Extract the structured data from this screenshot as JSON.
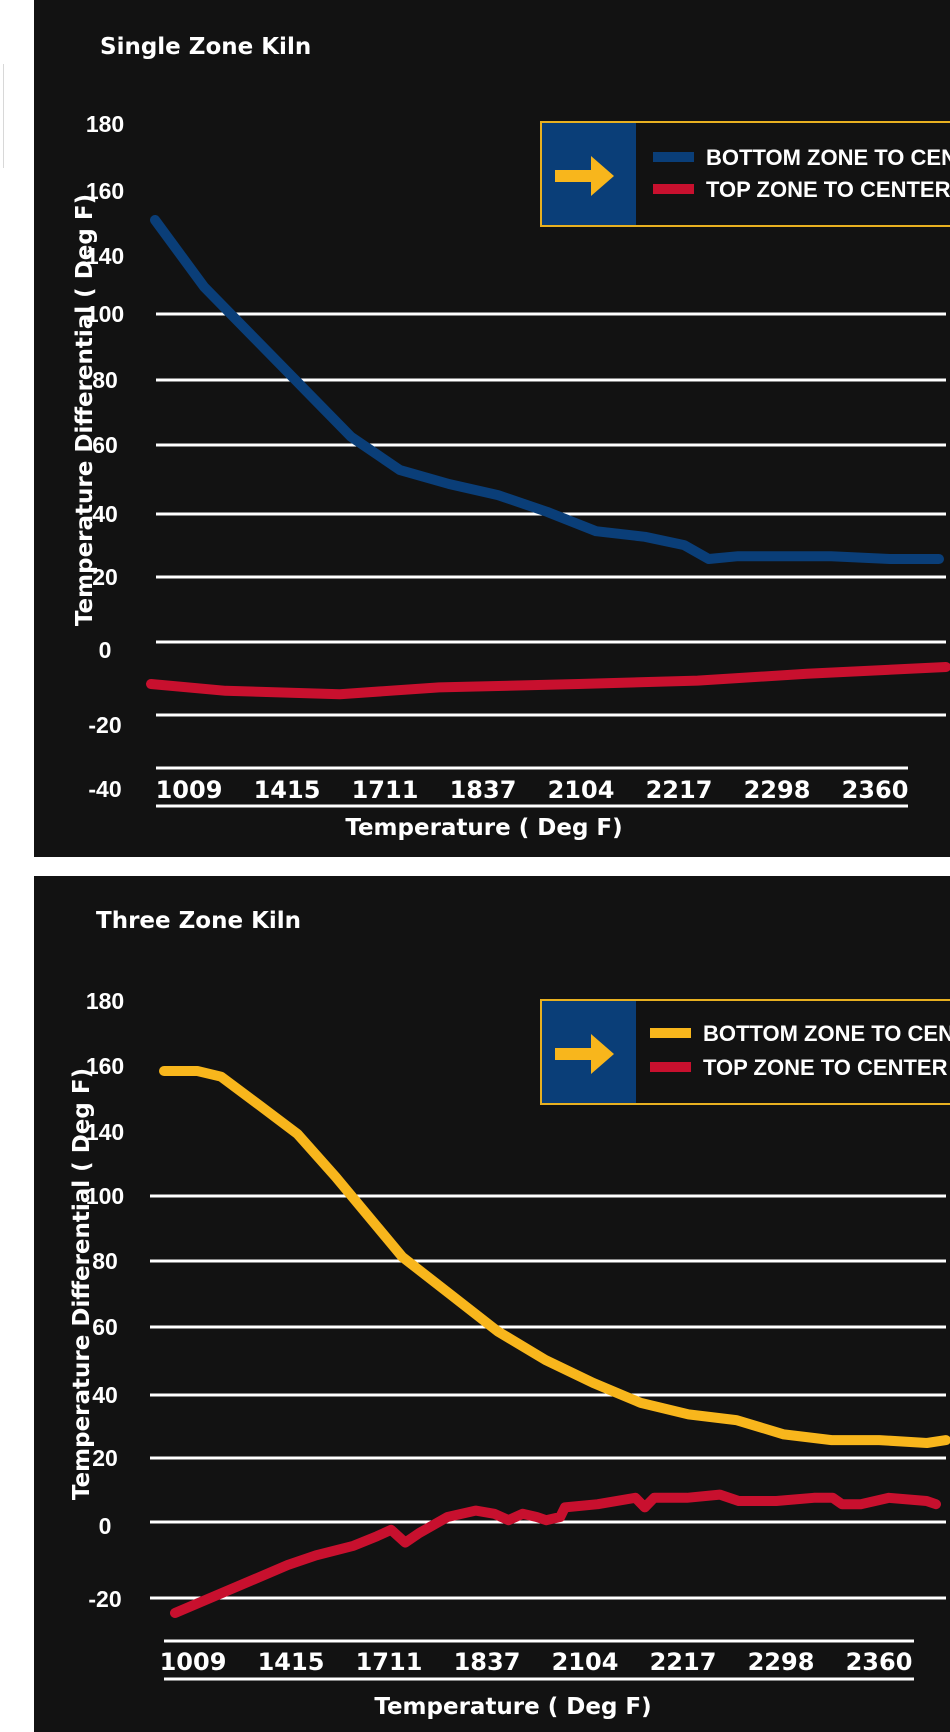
{
  "colors": {
    "background": "#121212",
    "grid": "#ffffff",
    "legend_border": "#e8b020",
    "legend_box": "#0a3e78",
    "arrow": "#f8b61c"
  },
  "legend_icon": "arrow-right-icon",
  "chart_data": [
    {
      "type": "line",
      "title": "Single Zone Kiln",
      "xlabel": "Temperature  ( Deg F)",
      "ylabel": "Temperature Differential ( Deg F)",
      "categories": [
        "1009",
        "1415",
        "1711",
        "1837",
        "2104",
        "2217",
        "2298",
        "2360"
      ],
      "y_ticks": [
        "180",
        "160",
        "140",
        "100",
        "80",
        "60",
        "40",
        "20",
        "0",
        "-20",
        "-40"
      ],
      "grid": true,
      "legend_position": "top-right",
      "series": [
        {
          "name": "BOTTOM ZONE TO CENTER",
          "color": "#0a3e78",
          "points": [
            [
              0.0,
              150
            ],
            [
              0.5,
              126
            ],
            [
              1.0,
              108
            ],
            [
              1.5,
              90
            ],
            [
              2.0,
              72
            ],
            [
              2.5,
              60
            ],
            [
              3.0,
              55
            ],
            [
              3.5,
              51
            ],
            [
              4.0,
              45
            ],
            [
              4.5,
              38
            ],
            [
              5.0,
              36
            ],
            [
              5.4,
              33
            ],
            [
              5.65,
              28
            ],
            [
              5.95,
              29
            ],
            [
              6.4,
              29
            ],
            [
              6.9,
              29
            ],
            [
              7.5,
              28
            ],
            [
              8.0,
              28
            ]
          ]
        },
        {
          "name": "TOP ZONE TO CENTER",
          "color": "#c8102e",
          "points": [
            [
              0.0,
              -8
            ],
            [
              0.75,
              -10
            ],
            [
              1.9,
              -11
            ],
            [
              2.9,
              -9
            ],
            [
              4.3,
              -8
            ],
            [
              5.5,
              -7
            ],
            [
              6.6,
              -5
            ],
            [
              8.0,
              -3
            ]
          ]
        }
      ]
    },
    {
      "type": "line",
      "title": "Three Zone Kiln",
      "xlabel": "Temperature  ( Deg F)",
      "ylabel": "Temperature Differential ( Deg F)",
      "categories": [
        "1009",
        "1415",
        "1711",
        "1837",
        "2104",
        "2217",
        "2298",
        "2360"
      ],
      "y_ticks": [
        "180",
        "160",
        "140",
        "100",
        "80",
        "60",
        "40",
        "20",
        "0",
        "-20"
      ],
      "grid": true,
      "legend_position": "top-right",
      "series": [
        {
          "name": "BOTTOM ZONE TO CENTER",
          "color": "#f8b61c",
          "points": [
            [
              0.0,
              157
            ],
            [
              0.35,
              157
            ],
            [
              0.6,
              155
            ],
            [
              1.0,
              145
            ],
            [
              1.4,
              135
            ],
            [
              1.8,
              120
            ],
            [
              2.2,
              104
            ],
            [
              2.5,
              92
            ],
            [
              3.0,
              79
            ],
            [
              3.5,
              66
            ],
            [
              4.0,
              56
            ],
            [
              4.5,
              48
            ],
            [
              5.0,
              41
            ],
            [
              5.5,
              37
            ],
            [
              6.0,
              35
            ],
            [
              6.5,
              30
            ],
            [
              7.0,
              28
            ],
            [
              7.5,
              28
            ],
            [
              8.0,
              27
            ],
            [
              8.2,
              28
            ]
          ]
        },
        {
          "name": "TOP ZONE TO CENTER",
          "color": "#c8102e",
          "points": [
            [
              0.0,
              -24
            ],
            [
              0.4,
              -19
            ],
            [
              0.8,
              -14
            ],
            [
              1.2,
              -9
            ],
            [
              1.5,
              -6
            ],
            [
              1.9,
              -3
            ],
            [
              2.15,
              0
            ],
            [
              2.3,
              2
            ],
            [
              2.45,
              -2
            ],
            [
              2.6,
              1
            ],
            [
              2.9,
              6
            ],
            [
              3.2,
              8
            ],
            [
              3.4,
              7
            ],
            [
              3.55,
              5
            ],
            [
              3.7,
              7
            ],
            [
              3.85,
              6
            ],
            [
              3.95,
              5
            ],
            [
              4.1,
              6
            ],
            [
              4.15,
              9
            ],
            [
              4.5,
              10
            ],
            [
              4.9,
              12
            ],
            [
              5.0,
              9
            ],
            [
              5.1,
              12
            ],
            [
              5.45,
              12
            ],
            [
              5.8,
              13
            ],
            [
              6.0,
              11
            ],
            [
              6.4,
              11
            ],
            [
              6.8,
              12
            ],
            [
              7.0,
              12
            ],
            [
              7.1,
              10
            ],
            [
              7.3,
              10
            ],
            [
              7.6,
              12
            ],
            [
              8.0,
              11
            ],
            [
              8.1,
              10
            ]
          ]
        }
      ]
    }
  ]
}
